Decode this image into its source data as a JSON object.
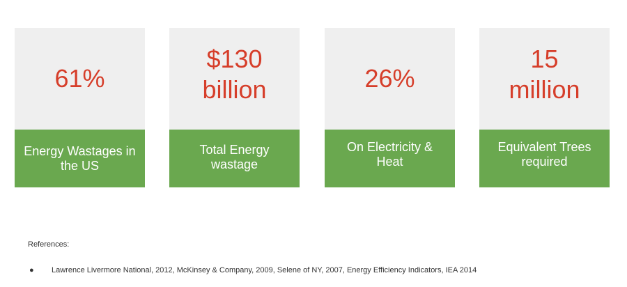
{
  "stats": [
    {
      "value": "61%",
      "label": "Energy Wastages in\nthe US"
    },
    {
      "value": "$130\nbillion",
      "label": "Total Energy\nwastage"
    },
    {
      "value": "26%",
      "label": "On Electricity &\nHeat"
    },
    {
      "value": "15\nmillion",
      "label": "Equivalent Trees\nrequired"
    }
  ],
  "references": {
    "title": "References:",
    "items": [
      "Lawrence Livermore National, 2012, McKinsey & Company, 2009, Selene of NY, 2007, Energy Efficiency Indicators, IEA 2014"
    ]
  },
  "colors": {
    "stat_text": "#d63e2a",
    "label_background": "#6aa84f",
    "card_background": "#efefef"
  }
}
